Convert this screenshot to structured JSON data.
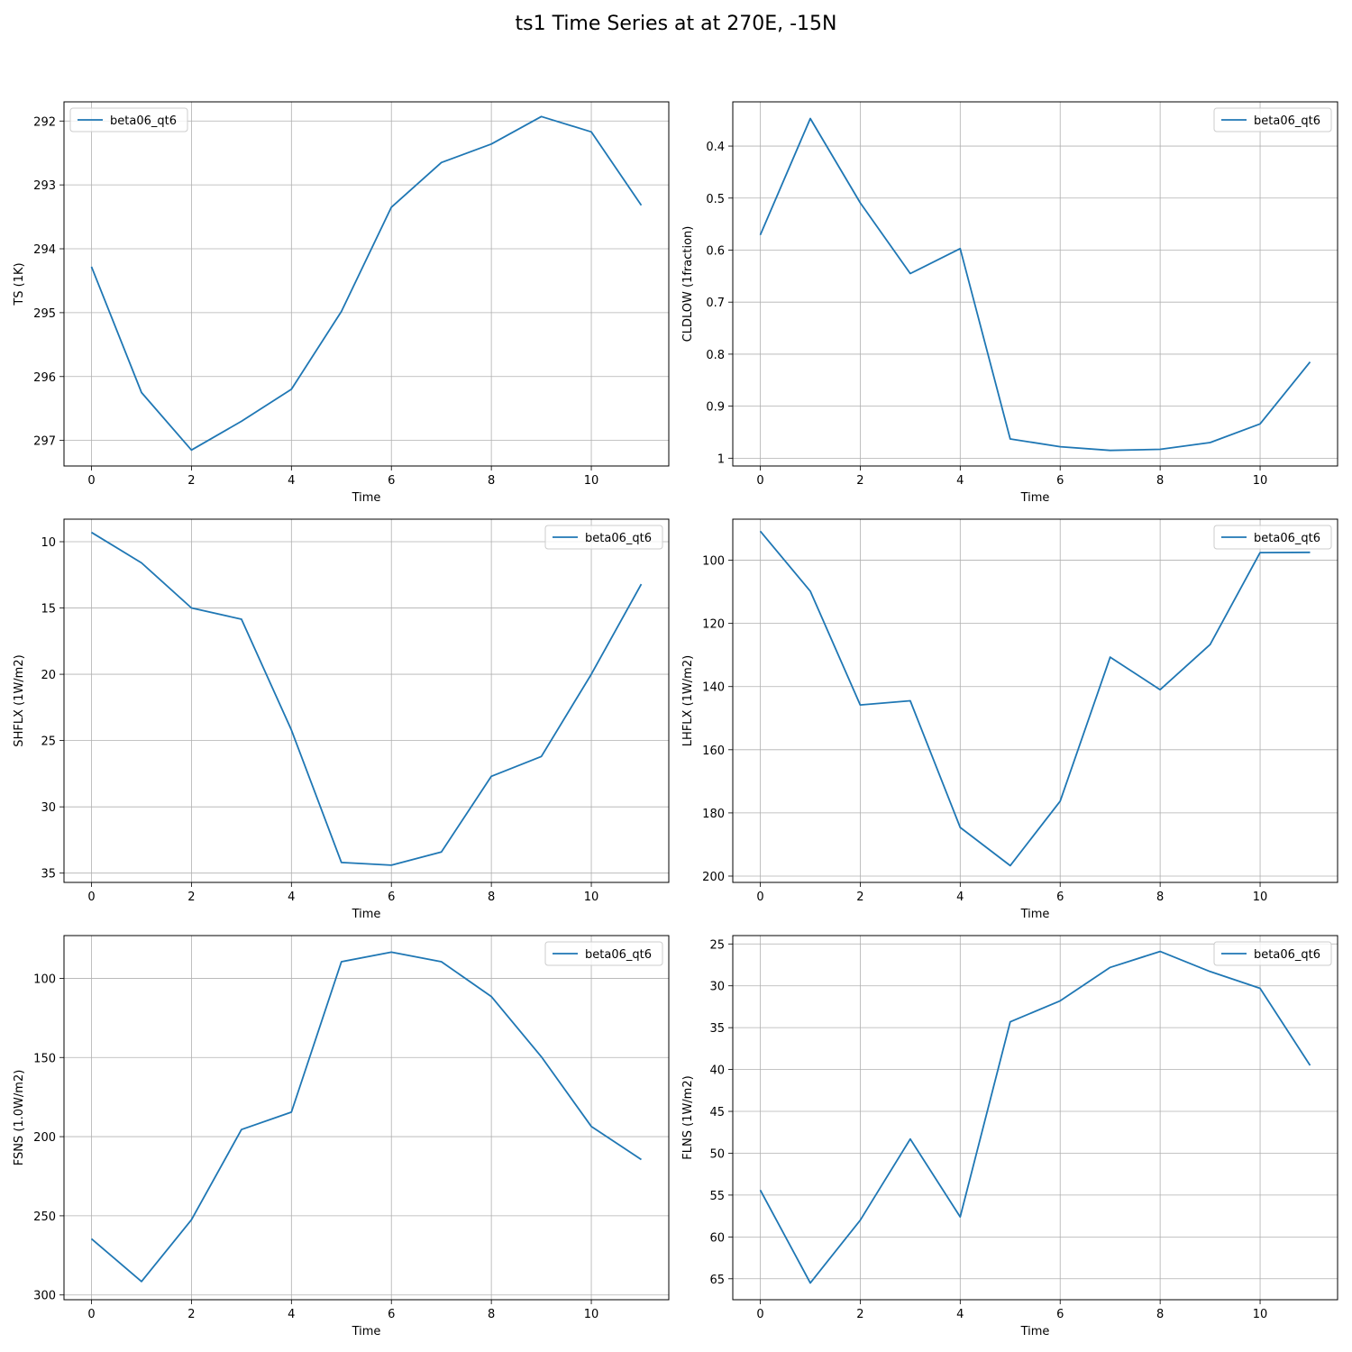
{
  "figure_title": "ts1 Time Series at at 270E, -15N",
  "colors": {
    "series": "#1f77b4",
    "grid": "#b0b0b0",
    "axis": "#000000"
  },
  "chart_data": [
    {
      "type": "line",
      "xlabel": "Time",
      "ylabel": "TS (1K)",
      "xlim": [
        -0.55,
        11.55
      ],
      "ylim": [
        297.4,
        291.7
      ],
      "xticks": [
        0,
        2,
        4,
        6,
        8,
        10
      ],
      "yticks": [
        292,
        293,
        294,
        295,
        296,
        297
      ],
      "grid": true,
      "legend_loc": "upper left",
      "series": [
        {
          "name": "beta06_qt6",
          "x": [
            0,
            1,
            2,
            3,
            4,
            5,
            6,
            7,
            8,
            9,
            10,
            11
          ],
          "values": [
            294.28,
            296.25,
            297.15,
            296.7,
            296.2,
            294.98,
            293.35,
            292.65,
            292.36,
            291.93,
            292.17,
            293.32
          ]
        }
      ]
    },
    {
      "type": "line",
      "xlabel": "Time",
      "ylabel": "CLDLOW (1fraction)",
      "xlim": [
        -0.55,
        11.55
      ],
      "ylim": [
        1.015,
        0.315
      ],
      "xticks": [
        0,
        2,
        4,
        6,
        8,
        10
      ],
      "yticks": [
        0.4,
        0.5,
        0.6,
        0.7,
        0.8,
        0.9,
        1.0
      ],
      "grid": true,
      "legend_loc": "upper right",
      "series": [
        {
          "name": "beta06_qt6",
          "x": [
            0,
            1,
            2,
            3,
            4,
            5,
            6,
            7,
            8,
            9,
            10,
            11
          ],
          "values": [
            0.571,
            0.347,
            0.509,
            0.645,
            0.597,
            0.963,
            0.978,
            0.985,
            0.983,
            0.97,
            0.934,
            0.815
          ]
        }
      ]
    },
    {
      "type": "line",
      "xlabel": "Time",
      "ylabel": "SHFLX (1W/m2)",
      "xlim": [
        -0.55,
        11.55
      ],
      "ylim": [
        35.7,
        8.3
      ],
      "xticks": [
        0,
        2,
        4,
        6,
        8,
        10
      ],
      "yticks": [
        10,
        15,
        20,
        25,
        30,
        35
      ],
      "grid": true,
      "legend_loc": "upper right",
      "series": [
        {
          "name": "beta06_qt6",
          "x": [
            0,
            1,
            2,
            3,
            4,
            5,
            6,
            7,
            8,
            9,
            10,
            11
          ],
          "values": [
            9.3,
            11.6,
            15.0,
            15.85,
            24.2,
            34.2,
            34.4,
            33.4,
            27.7,
            26.2,
            20.0,
            13.2
          ]
        }
      ]
    },
    {
      "type": "line",
      "xlabel": "Time",
      "ylabel": "LHFLX (1W/m2)",
      "xlim": [
        -0.55,
        11.55
      ],
      "ylim": [
        202,
        87
      ],
      "xticks": [
        0,
        2,
        4,
        6,
        8,
        10
      ],
      "yticks": [
        100,
        120,
        140,
        160,
        180,
        200
      ],
      "grid": true,
      "legend_loc": "upper right",
      "series": [
        {
          "name": "beta06_qt6",
          "x": [
            0,
            1,
            2,
            3,
            4,
            5,
            6,
            7,
            8,
            9,
            10,
            11
          ],
          "values": [
            90.8,
            109.8,
            145.8,
            144.5,
            184.6,
            196.7,
            176.3,
            130.7,
            141.0,
            126.7,
            97.6,
            97.5
          ]
        }
      ]
    },
    {
      "type": "line",
      "xlabel": "Time",
      "ylabel": "FSNS (1.0W/m2)",
      "xlim": [
        -0.55,
        11.55
      ],
      "ylim": [
        303,
        73
      ],
      "xticks": [
        0,
        2,
        4,
        6,
        8,
        10
      ],
      "yticks": [
        100,
        150,
        200,
        250,
        300
      ],
      "grid": true,
      "legend_loc": "upper right",
      "series": [
        {
          "name": "beta06_qt6",
          "x": [
            0,
            1,
            2,
            3,
            4,
            5,
            6,
            7,
            8,
            9,
            10,
            11
          ],
          "values": [
            264.5,
            291.5,
            252.5,
            195.5,
            184.5,
            89.5,
            83.5,
            89.5,
            111.5,
            149.5,
            193.5,
            214.5
          ]
        }
      ]
    },
    {
      "type": "line",
      "xlabel": "Time",
      "ylabel": "FLNS (1W/m2)",
      "xlim": [
        -0.55,
        11.55
      ],
      "ylim": [
        67.5,
        24.0
      ],
      "xticks": [
        0,
        2,
        4,
        6,
        8,
        10
      ],
      "yticks": [
        25,
        30,
        35,
        40,
        45,
        50,
        55,
        60,
        65
      ],
      "grid": true,
      "legend_loc": "upper right",
      "series": [
        {
          "name": "beta06_qt6",
          "x": [
            0,
            1,
            2,
            3,
            4,
            5,
            6,
            7,
            8,
            9,
            10,
            11
          ],
          "values": [
            54.4,
            65.5,
            58.0,
            48.3,
            57.6,
            34.3,
            31.8,
            27.8,
            25.9,
            28.3,
            30.3,
            39.5
          ]
        }
      ]
    }
  ]
}
